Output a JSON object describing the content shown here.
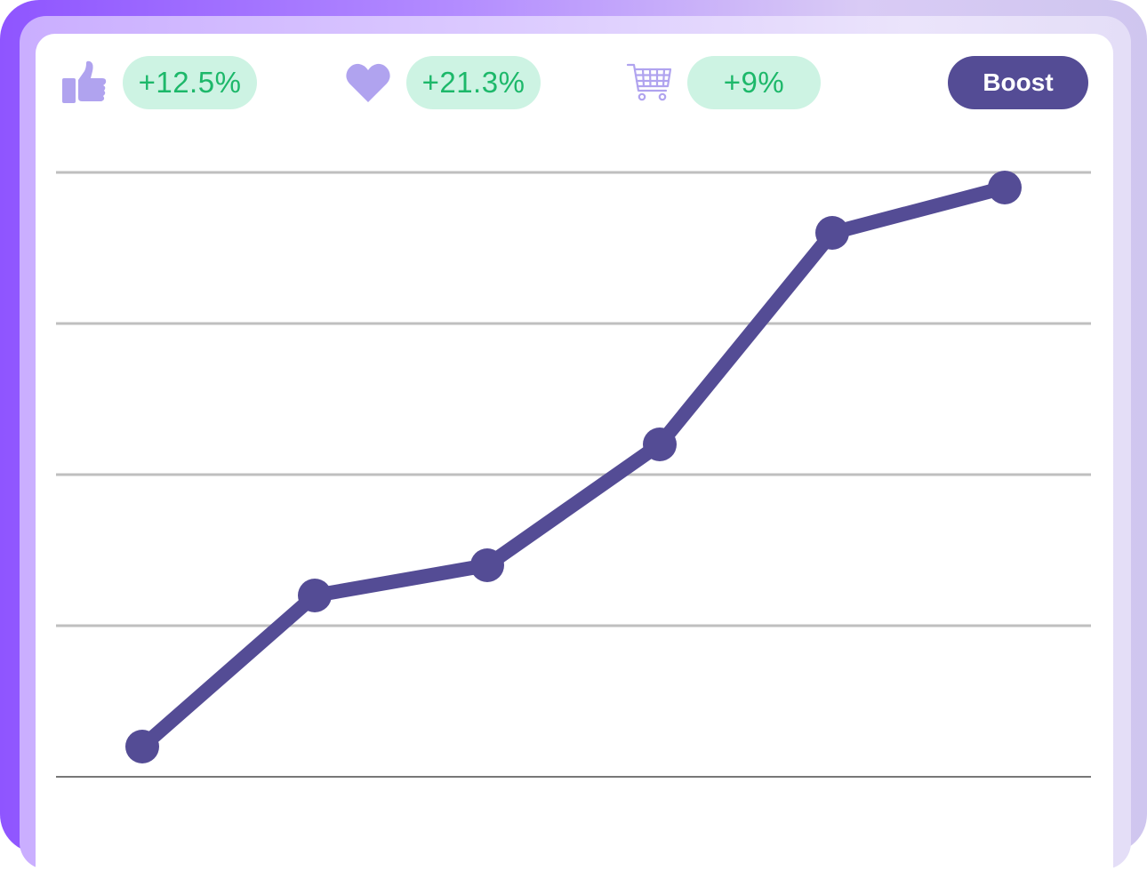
{
  "metrics": {
    "likes": {
      "icon": "thumbs-up-icon",
      "value": "+12.5%"
    },
    "favorites": {
      "icon": "heart-icon",
      "value": "+21.3%"
    },
    "cart": {
      "icon": "shopping-cart-icon",
      "value": "+9%"
    }
  },
  "actions": {
    "boost_label": "Boost"
  },
  "colors": {
    "line": "#544c95",
    "icon": "#b0a3ef",
    "pill_bg": "#cdf3e3",
    "pill_text": "#1db86a",
    "grid": "#bfbfbf"
  },
  "chart_data": {
    "type": "line",
    "title": "",
    "xlabel": "",
    "ylabel": "",
    "x": [
      1,
      2,
      3,
      4,
      5,
      6
    ],
    "series": [
      {
        "values": [
          0.2,
          1.2,
          1.4,
          2.2,
          3.6,
          3.9
        ]
      }
    ],
    "ylim": [
      0,
      4
    ],
    "grid": true
  }
}
